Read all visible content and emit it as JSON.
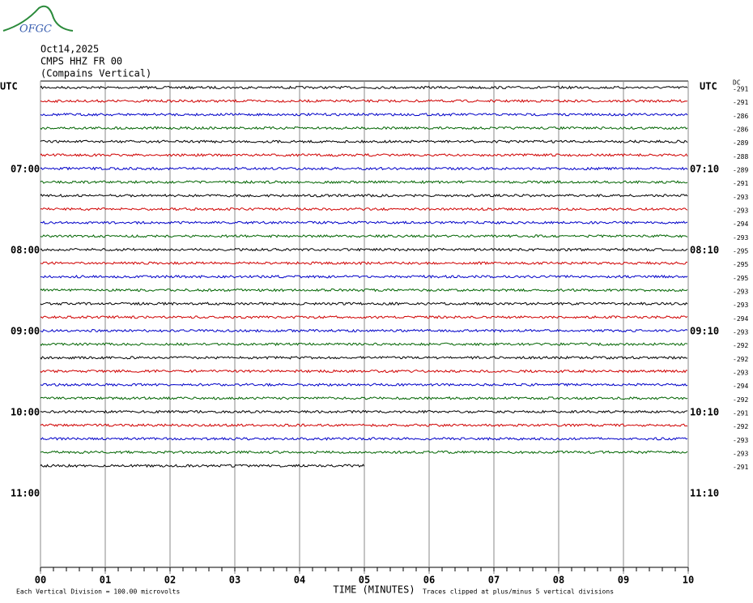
{
  "logo_text": "OFGC",
  "chart_data": {
    "type": "helicorder",
    "date": "Oct14,2025",
    "station": "CMPS HHZ FR 00",
    "location": "(Compains Vertical)",
    "left_axis_title": "UTC",
    "right_axis_title": "UTC",
    "dc_title": "DC",
    "left_hour_labels": [
      "07:00",
      "08:00",
      "09:00",
      "10:00",
      "11:00"
    ],
    "right_hour_labels": [
      "07:10",
      "08:10",
      "09:10",
      "10:10",
      "11:10"
    ],
    "x_label": "TIME (MINUTES)",
    "xlim": [
      0,
      10
    ],
    "xticks": [
      {
        "value": 0,
        "label": "00"
      },
      {
        "value": 1,
        "label": "01"
      },
      {
        "value": 2,
        "label": "02"
      },
      {
        "value": 3,
        "label": "03"
      },
      {
        "value": 4,
        "label": "04"
      },
      {
        "value": 5,
        "label": "05"
      },
      {
        "value": 6,
        "label": "06"
      },
      {
        "value": 7,
        "label": "07"
      },
      {
        "value": 8,
        "label": "08"
      },
      {
        "value": 9,
        "label": "09"
      },
      {
        "value": 10,
        "label": "10"
      }
    ],
    "trace_end": 5,
    "colors": [
      "#000000",
      "#d00000",
      "#0000c8",
      "#006400"
    ],
    "dc_values": [
      -291,
      -291,
      -286,
      -286,
      -289,
      -288,
      -289,
      -291,
      -293,
      -293,
      -294,
      -293,
      -295,
      -295,
      -295,
      -293,
      -293,
      -294,
      -293,
      -292,
      -292,
      -293,
      -294,
      -292,
      -291,
      -292,
      -293,
      -293,
      -291
    ],
    "scale_note": "Each Vertical Division =  100.00 microvolts",
    "clip_note": "Traces clipped at plus/minus 5 vertical divisions"
  }
}
